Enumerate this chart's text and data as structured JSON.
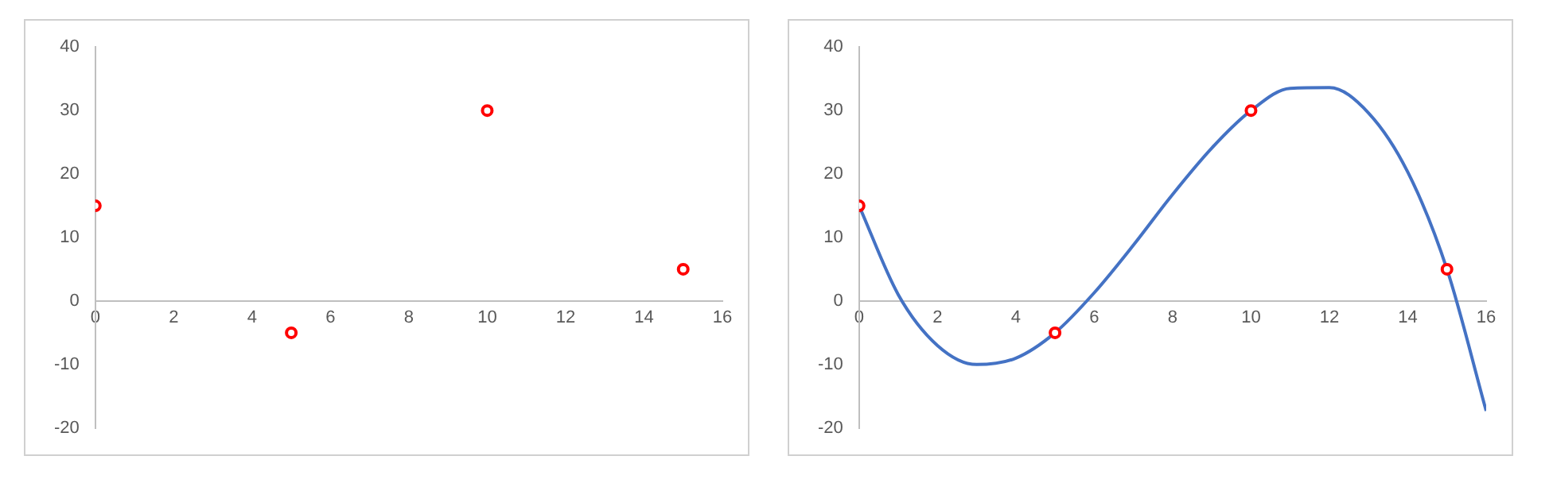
{
  "chart_data": [
    {
      "type": "scatter",
      "x": [
        0,
        5,
        10,
        15
      ],
      "values": [
        15,
        -5,
        30,
        5
      ],
      "color": "#ff0000",
      "marker": "circle",
      "xlim": [
        0,
        16
      ],
      "xticks": [
        0,
        2,
        4,
        6,
        8,
        10,
        12,
        14,
        16
      ],
      "ylim": [
        -20,
        40
      ],
      "yticks": [
        -20,
        -10,
        0,
        10,
        20,
        30,
        40
      ],
      "grid": false,
      "legend": false
    },
    {
      "type": "scatter",
      "series": [
        {
          "type": "line",
          "color": "#4472c4",
          "marker": "none",
          "x": [
            0,
            1,
            2,
            3,
            4,
            5,
            6,
            7,
            8,
            9,
            10,
            11,
            12,
            13,
            14,
            15,
            16
          ],
          "values": [
            15,
            1,
            -7,
            -10,
            -9,
            -5,
            1.3,
            8.8,
            16.8,
            24.1,
            30,
            33.5,
            33.6,
            29.6,
            20.3,
            5,
            -17.3
          ]
        },
        {
          "type": "scatter",
          "color": "#ff0000",
          "marker": "circle",
          "x": [
            0,
            5,
            10,
            15
          ],
          "values": [
            15,
            -5,
            30,
            5
          ]
        }
      ],
      "xlim": [
        0,
        16
      ],
      "xticks": [
        0,
        2,
        4,
        6,
        8,
        10,
        12,
        14,
        16
      ],
      "ylim": [
        -20,
        40
      ],
      "yticks": [
        -20,
        -10,
        0,
        10,
        20,
        30,
        40
      ],
      "grid": false,
      "legend": false
    }
  ]
}
